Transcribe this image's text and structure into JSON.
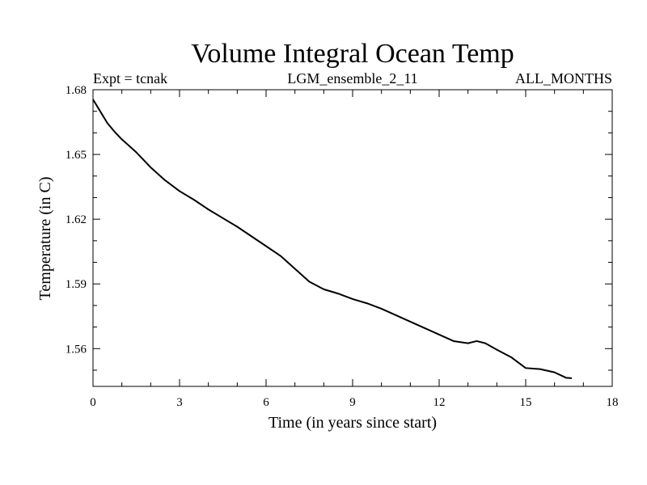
{
  "chart_data": {
    "type": "line",
    "title": "Volume Integral Ocean Temp",
    "subtitle_left": "Expt = tcnak",
    "subtitle_center": "LGM_ensemble_2_11",
    "subtitle_right": "ALL_MONTHS",
    "xlabel": "Time (in years since start)",
    "ylabel": "Temperature (in C)",
    "xlim": [
      0,
      18
    ],
    "ylim": [
      1.5425,
      1.68
    ],
    "x_ticks": [
      0,
      3,
      6,
      9,
      12,
      15,
      18
    ],
    "x_tick_labels": [
      "0",
      "3",
      "6",
      "9",
      "12",
      "15",
      "18"
    ],
    "y_ticks": [
      1.56,
      1.59,
      1.62,
      1.65,
      1.68
    ],
    "y_tick_labels": [
      "1.56",
      "1.59",
      "1.62",
      "1.65",
      "1.68"
    ],
    "series": [
      {
        "name": "Volume Integral Ocean Temp",
        "x": [
          0,
          0.25,
          0.5,
          0.75,
          1.0,
          1.5,
          2.0,
          2.5,
          3.0,
          3.5,
          4.0,
          4.5,
          5.0,
          5.5,
          6.0,
          6.5,
          7.0,
          7.5,
          8.0,
          8.5,
          9.0,
          9.5,
          10.0,
          10.5,
          11.0,
          11.5,
          12.0,
          12.5,
          13.0,
          13.3,
          13.6,
          14.0,
          14.5,
          15.0,
          15.5,
          16.0,
          16.4,
          16.6
        ],
        "y": [
          1.6755,
          1.67,
          1.6645,
          1.6605,
          1.657,
          1.651,
          1.644,
          1.638,
          1.633,
          1.629,
          1.6245,
          1.6205,
          1.6165,
          1.612,
          1.6075,
          1.603,
          1.597,
          1.591,
          1.5875,
          1.5855,
          1.583,
          1.581,
          1.5785,
          1.5755,
          1.5725,
          1.5695,
          1.5665,
          1.5635,
          1.5625,
          1.5635,
          1.5625,
          1.5595,
          1.556,
          1.551,
          1.5505,
          1.549,
          1.5465,
          1.5463
        ]
      }
    ]
  }
}
